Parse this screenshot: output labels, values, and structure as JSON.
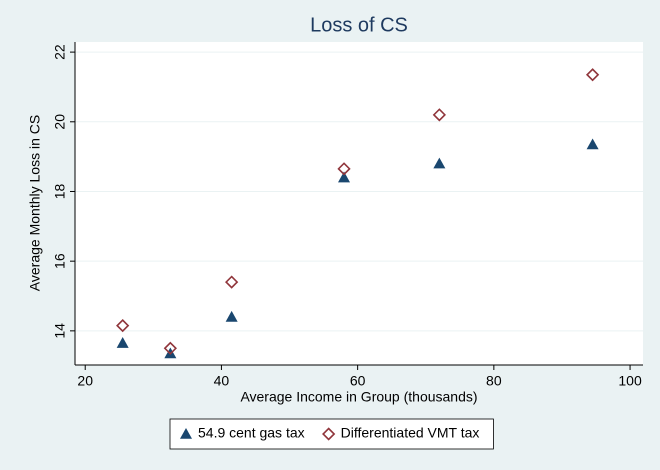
{
  "chart_data": {
    "type": "scatter",
    "title": "Loss of CS",
    "x_label": "Average Income in Group (thousands)",
    "y_label": "Average Monthly Loss in CS",
    "x": [
      25.5,
      32.5,
      41.5,
      58,
      72,
      94.5
    ],
    "series": [
      {
        "name": "54.9 cent gas tax",
        "color": "#1a476f",
        "marker": "triangle",
        "values": [
          13.65,
          13.35,
          14.4,
          18.4,
          18.8,
          19.35
        ]
      },
      {
        "name": "Differentiated VMT tax",
        "color": "#90353b",
        "marker": "diamond",
        "values": [
          14.15,
          13.5,
          15.4,
          18.65,
          20.2,
          21.35
        ]
      }
    ],
    "xlim": [
      18.5,
      101.9
    ],
    "xticks": [
      20,
      40,
      60,
      80,
      100
    ],
    "ylim": [
      13.02,
      22.29
    ],
    "yticks": [
      14,
      16,
      18,
      20,
      22
    ],
    "grid": true,
    "legend": "bottom"
  }
}
